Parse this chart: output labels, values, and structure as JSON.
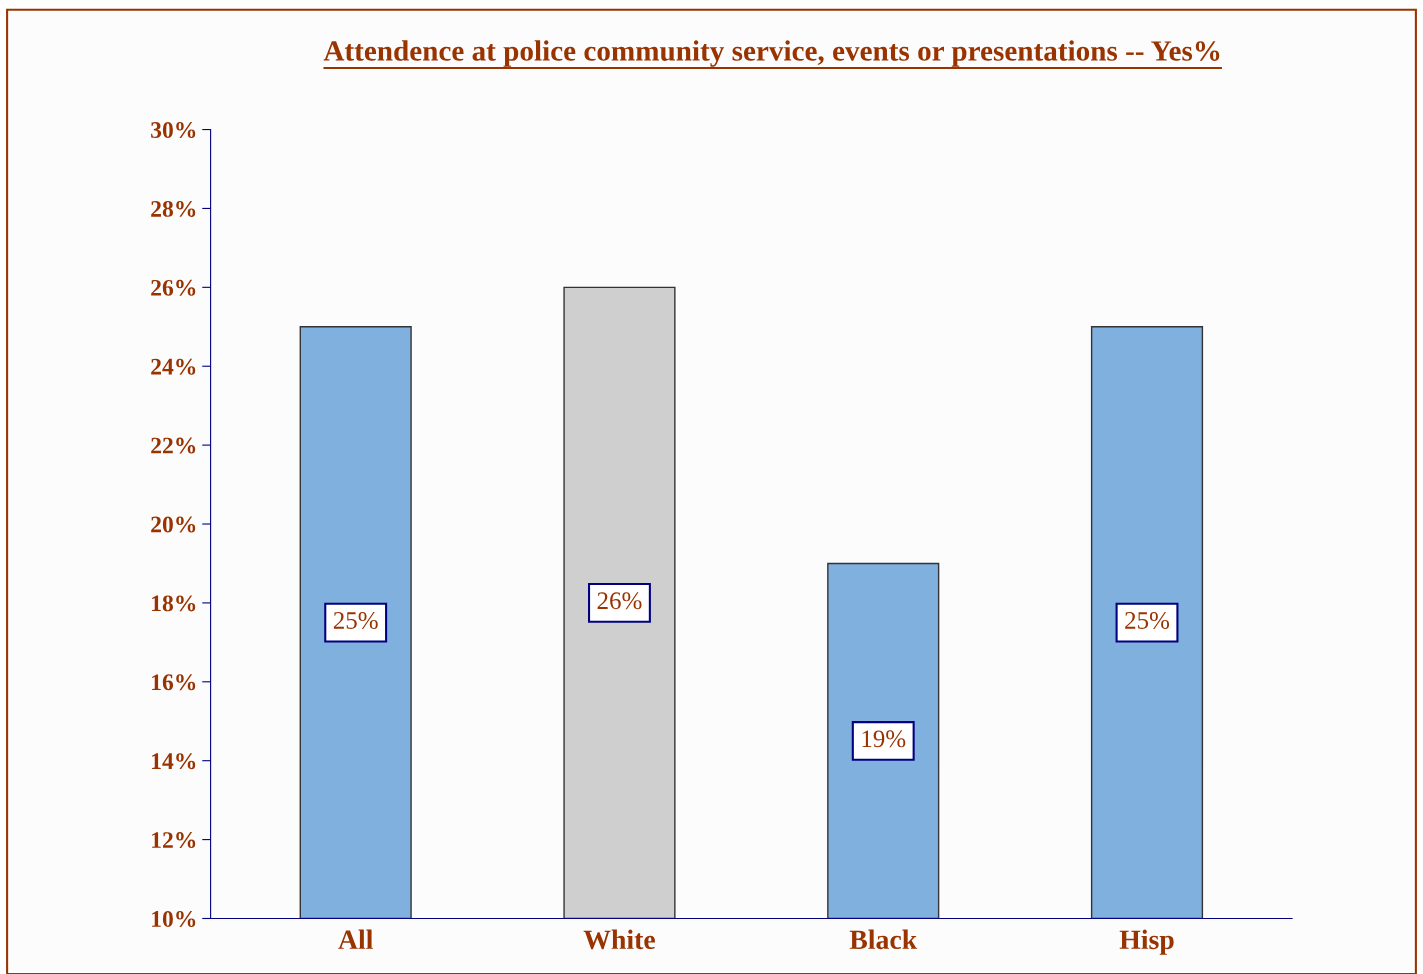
{
  "chart_data": {
    "type": "bar",
    "title": "Attendence at police community service, events or presentations -- Yes%",
    "categories": [
      "All",
      "White",
      "Black",
      "Hisp"
    ],
    "values": [
      25,
      26,
      19,
      25
    ],
    "colors": [
      "#7fb0de",
      "#cfcfcf",
      "#7fb0de",
      "#7fb0de"
    ],
    "value_labels": [
      "25%",
      "26%",
      "19%",
      "25%"
    ],
    "ylim": [
      10,
      30
    ],
    "yticks": [
      {
        "value": 10,
        "label": "10%"
      },
      {
        "value": 12,
        "label": "12%"
      },
      {
        "value": 14,
        "label": "14%"
      },
      {
        "value": 16,
        "label": "16%"
      },
      {
        "value": 18,
        "label": "18%"
      },
      {
        "value": 20,
        "label": "20%"
      },
      {
        "value": 22,
        "label": "22%"
      },
      {
        "value": 24,
        "label": "24%"
      },
      {
        "value": 26,
        "label": "26%"
      },
      {
        "value": 28,
        "label": "28%"
      },
      {
        "value": 30,
        "label": "30%"
      }
    ],
    "grid": false,
    "legend": false
  }
}
